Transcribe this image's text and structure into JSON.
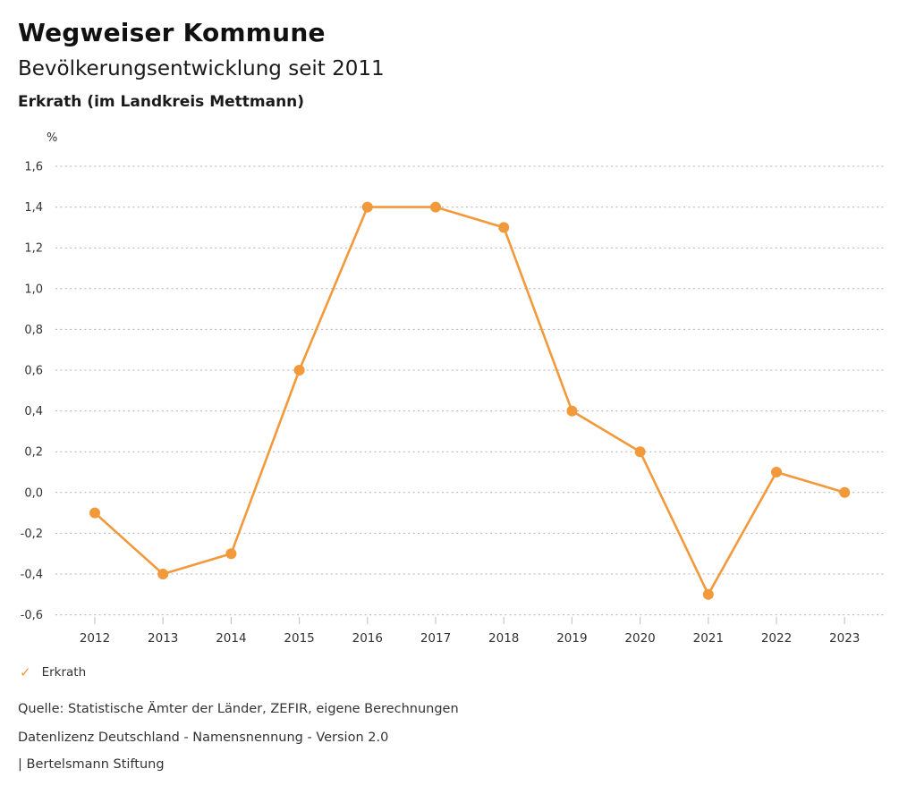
{
  "header": {
    "title": "Wegweiser Kommune",
    "subtitle": "Bevölkerungsentwicklung seit 2011",
    "region": "Erkrath (im Landkreis Mettmann)"
  },
  "chart_data": {
    "type": "line",
    "title": "Bevölkerungsentwicklung seit 2011",
    "xlabel": "",
    "ylabel": "%",
    "unit_label": "%",
    "x": [
      2012,
      2013,
      2014,
      2015,
      2016,
      2017,
      2018,
      2019,
      2020,
      2021,
      2022,
      2023
    ],
    "series": [
      {
        "name": "Erkrath",
        "values": [
          -0.1,
          -0.4,
          -0.3,
          0.6,
          1.4,
          1.4,
          1.3,
          0.4,
          0.2,
          -0.5,
          0.1,
          0.0
        ],
        "color": "#F2993C"
      }
    ],
    "ylim": [
      -0.6,
      1.6
    ],
    "ytick_step": 0.2,
    "ytick_labels": [
      "1,6",
      "1,4",
      "1,2",
      "1,0",
      "0,8",
      "0,6",
      "0,4",
      "0,2",
      "0,0",
      "-0,2",
      "-0,4",
      "-0,6"
    ],
    "grid": "horizontal-dotted",
    "legend_position": "bottom-left",
    "decimal_separator": ","
  },
  "legend": {
    "items": [
      {
        "label": "Erkrath",
        "icon": "check-icon",
        "color": "#F2993C"
      }
    ]
  },
  "footer": {
    "source": "Quelle: Statistische Ämter der Länder, ZEFIR, eigene Berechnungen",
    "license": "Datenlizenz Deutschland - Namensnennung - Version 2.0",
    "attribution": "| Bertelsmann Stiftung"
  },
  "colors": {
    "accent": "#F2993C",
    "grid": "#B0B0B0",
    "tick": "#C8C8C8",
    "axis_text": "#333333",
    "title_text": "#111111"
  }
}
